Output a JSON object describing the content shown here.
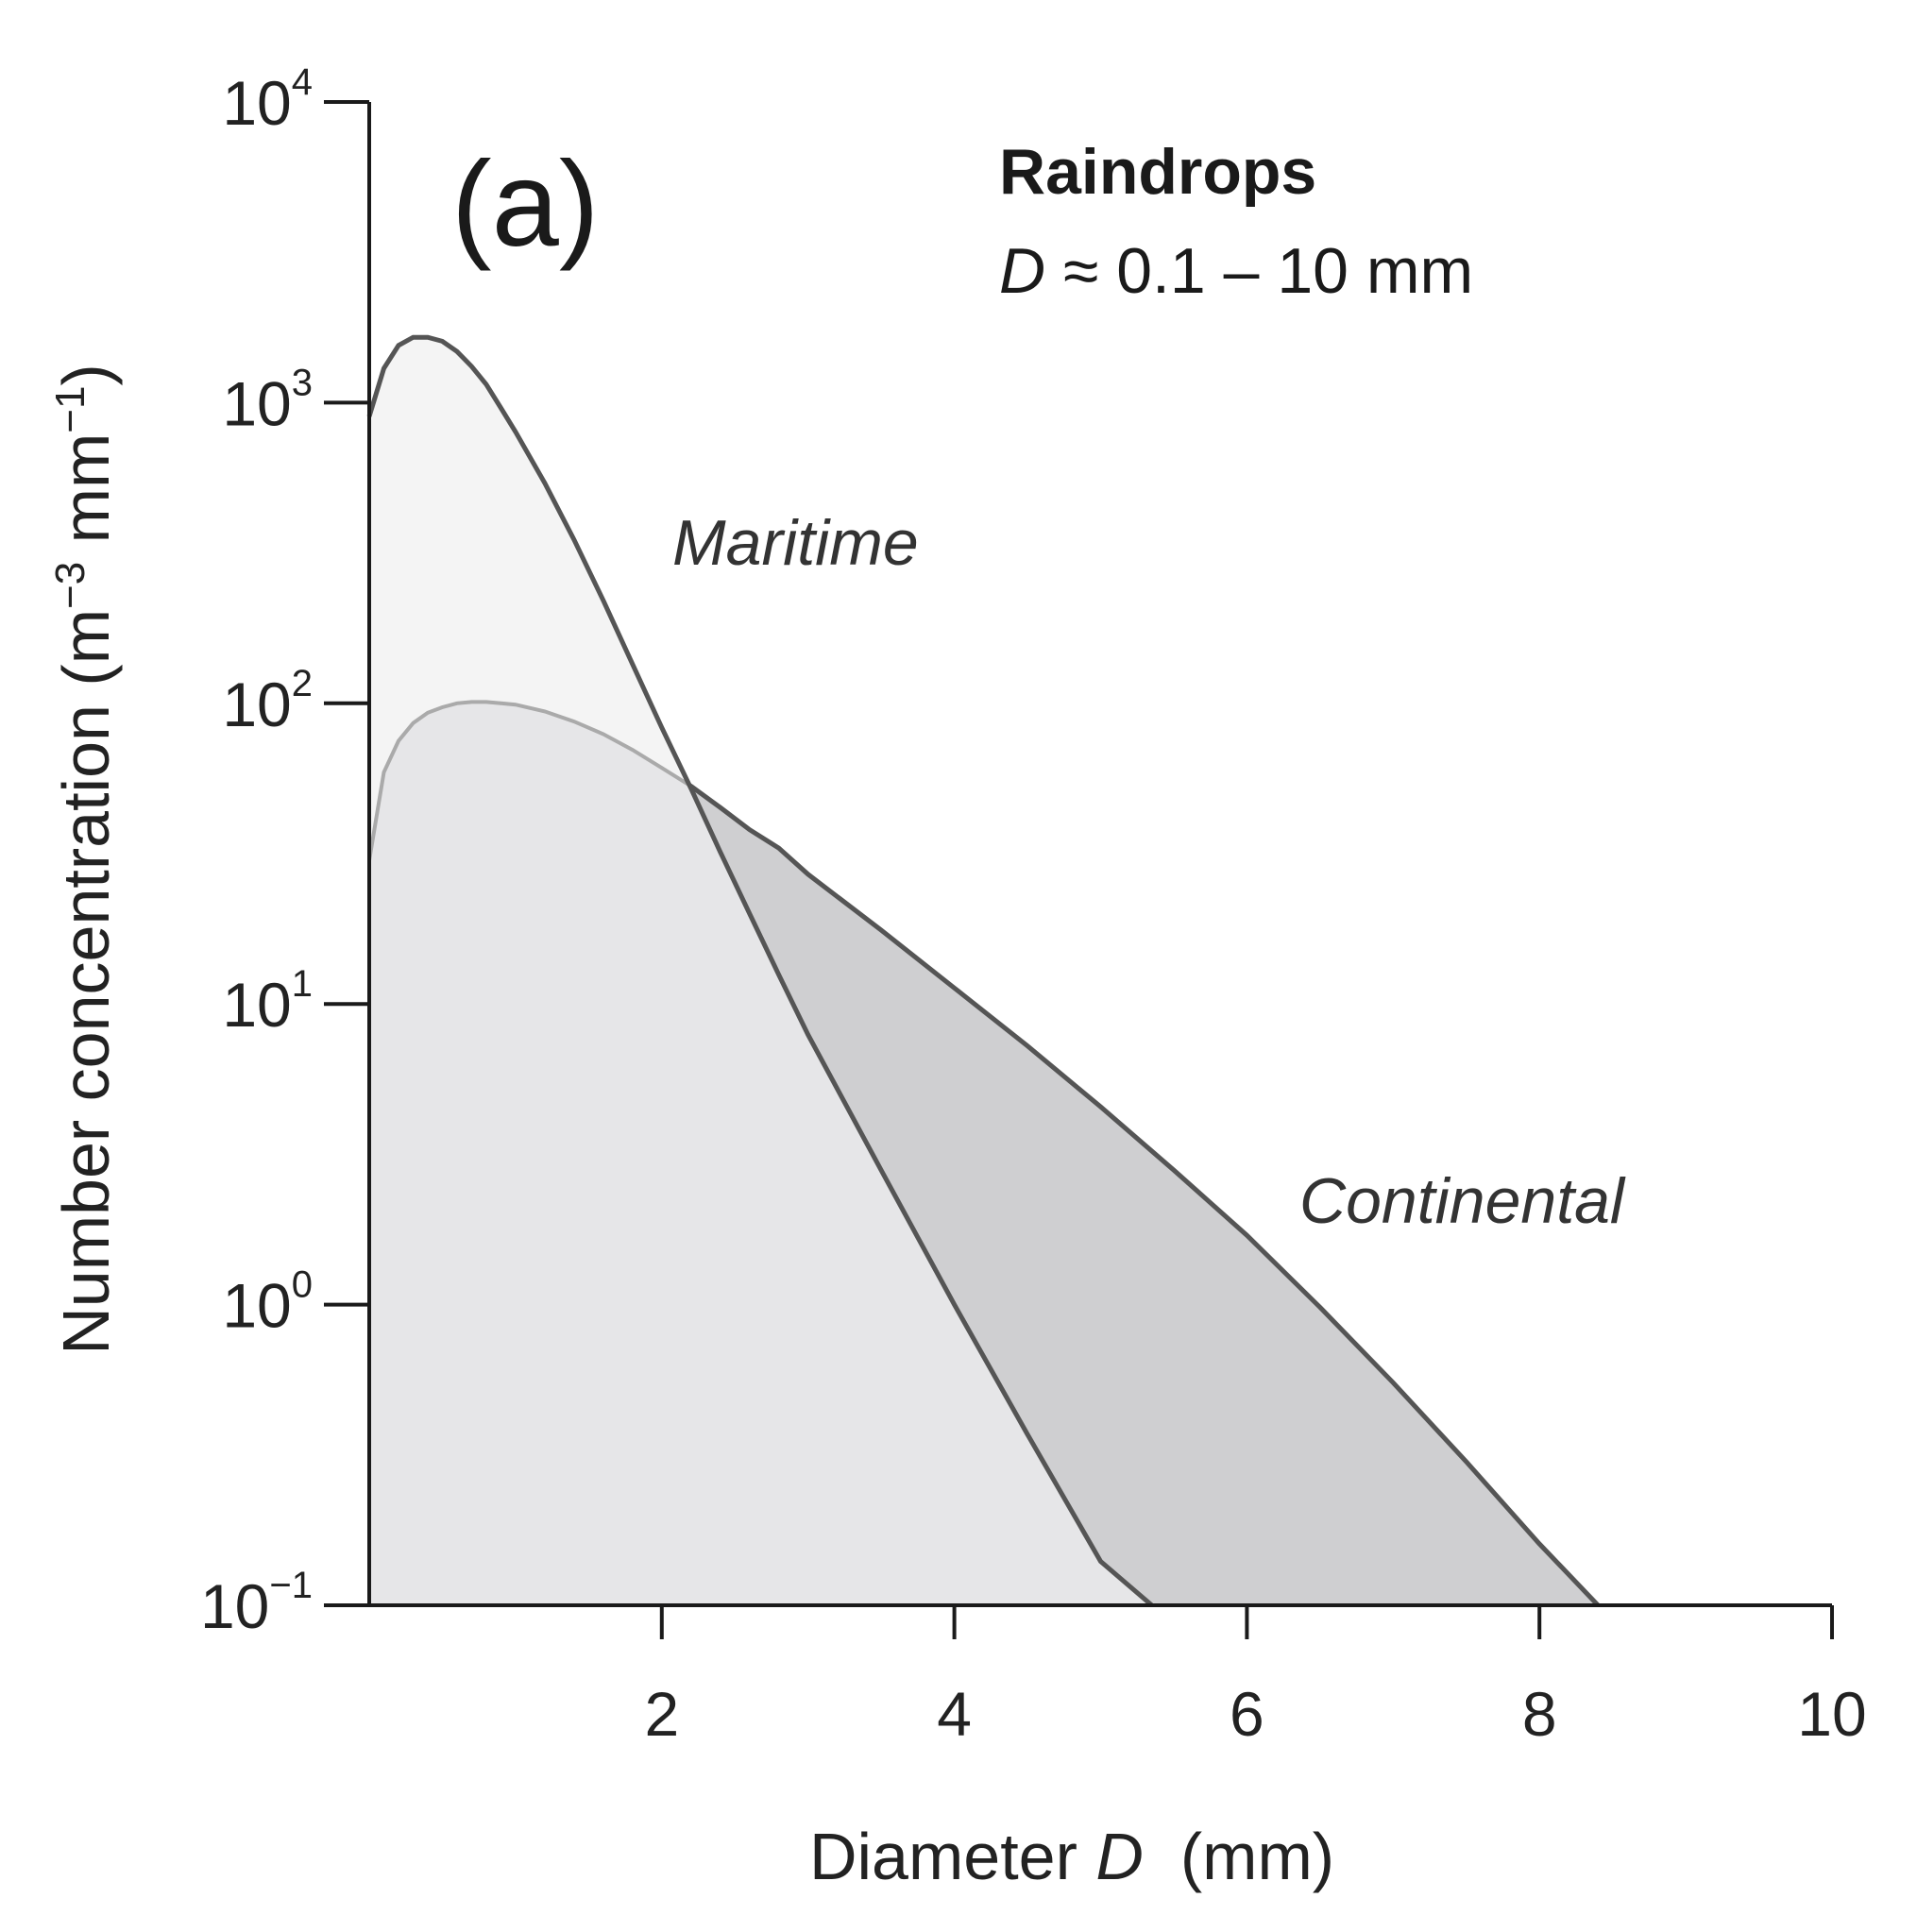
{
  "chart_data": {
    "type": "area",
    "panel_label": "(a)",
    "title": "Raindrops",
    "subtitle_var": "D",
    "subtitle_rest": " ≈ 0.1 – 10 mm",
    "xlabel_prefix": "Diameter ",
    "xlabel_var": "D",
    "xlabel_unit": "  (mm)",
    "ylabel_main": "Number concentration (m",
    "ylabel_sup1": "−3",
    "ylabel_mid": " mm",
    "ylabel_sup2": "−1",
    "ylabel_end": ")",
    "xlim": [
      0,
      10
    ],
    "ylim": [
      0.1,
      10000
    ],
    "yscale": "log",
    "grid": false,
    "x_ticks": [
      {
        "value": 2,
        "label": "2"
      },
      {
        "value": 4,
        "label": "4"
      },
      {
        "value": 6,
        "label": "6"
      },
      {
        "value": 8,
        "label": "8"
      },
      {
        "value": 10,
        "label": "10"
      }
    ],
    "y_ticks": [
      {
        "value": 0.1,
        "base": "10",
        "exp": "−1"
      },
      {
        "value": 1,
        "base": "10",
        "exp": "0"
      },
      {
        "value": 10,
        "base": "10",
        "exp": "1"
      },
      {
        "value": 100,
        "base": "10",
        "exp": "2"
      },
      {
        "value": 1000,
        "base": "10",
        "exp": "3"
      },
      {
        "value": 10000,
        "base": "10",
        "exp": "4"
      }
    ],
    "series": [
      {
        "name": "Continental",
        "fill": "#e6e6e8",
        "overlap_fill": "#cfcfd1",
        "stroke": "#aaaaaa",
        "tail_stroke": "#555555",
        "x": [
          0.0,
          0.1,
          0.2,
          0.3,
          0.4,
          0.5,
          0.6,
          0.7,
          0.8,
          0.9,
          1.0,
          1.2,
          1.4,
          1.6,
          1.8,
          2.0,
          2.2,
          2.4,
          2.6,
          2.8,
          3.0,
          3.5,
          4.0,
          4.5,
          5.0,
          5.5,
          6.0,
          6.5,
          7.0,
          7.5,
          8.0,
          8.4
        ],
        "y": [
          30,
          59,
          75,
          86,
          93,
          97,
          100,
          101,
          101,
          100,
          99,
          94,
          87,
          79,
          70,
          61,
          53,
          45,
          38,
          33,
          27,
          17.6,
          11.3,
          7.25,
          4.55,
          2.8,
          1.7,
          0.98,
          0.55,
          0.3,
          0.16,
          0.1
        ]
      },
      {
        "name": "Maritime",
        "fill": "#f4f4f4",
        "stroke": "#555555",
        "x": [
          0.0,
          0.1,
          0.2,
          0.3,
          0.4,
          0.5,
          0.6,
          0.7,
          0.8,
          0.9,
          1.0,
          1.2,
          1.4,
          1.6,
          1.8,
          2.0,
          2.2,
          2.4,
          2.6,
          2.8,
          3.0,
          3.5,
          4.0,
          4.5,
          5.0,
          5.35
        ],
        "y": [
          900,
          1300,
          1550,
          1650,
          1650,
          1600,
          1480,
          1320,
          1150,
          960,
          800,
          540,
          350,
          220,
          135,
          83,
          52,
          32,
          20,
          12.5,
          7.9,
          2.8,
          1.0,
          0.37,
          0.14,
          0.1
        ]
      }
    ]
  }
}
